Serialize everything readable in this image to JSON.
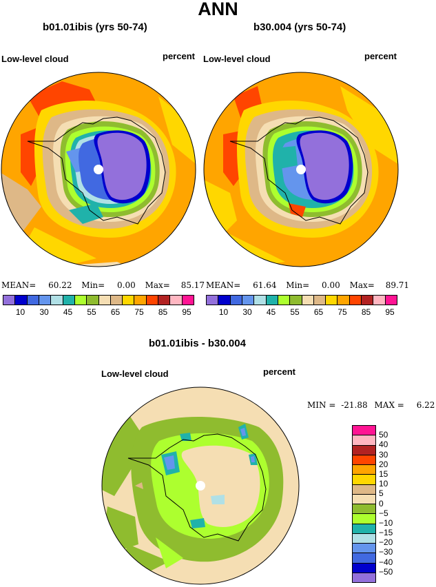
{
  "title": "ANN",
  "panels": [
    {
      "case": "b01.01ibis (yrs 50-74)",
      "variable": "Low-level cloud",
      "units": "percent",
      "stats": {
        "mean_label": "MEAN=",
        "mean": "60.22",
        "min_label": "Min=",
        "min": "0.00",
        "max_label": "Max=",
        "max": "85.17"
      }
    },
    {
      "case": "b30.004 (yrs 50-74)",
      "variable": "Low-level cloud",
      "units": "percent",
      "stats": {
        "mean_label": "MEAN=",
        "mean": "61.64",
        "min_label": "Min=",
        "min": "0.00",
        "max_label": "Max=",
        "max": "89.71"
      }
    }
  ],
  "colorbar": {
    "colors": [
      "#9370db",
      "#0000cd",
      "#4169e1",
      "#6495ed",
      "#b0e0e6",
      "#20b2aa",
      "#adff2f",
      "#8fbc2f",
      "#f5deb3",
      "#deb887",
      "#ffd700",
      "#ffa500",
      "#ff4500",
      "#b22222",
      "#ffb6c1",
      "#ff1493"
    ],
    "labels": [
      "10",
      "30",
      "45",
      "55",
      "65",
      "75",
      "85",
      "95"
    ]
  },
  "difference": {
    "title": "b01.01ibis - b30.004",
    "variable": "Low-level cloud",
    "units": "percent",
    "stats": {
      "min_label": "MIN =",
      "min": "-21.88",
      "max_label": "MAX =",
      "max": "6.22"
    },
    "colorbar": {
      "colors": [
        "#ff1493",
        "#ffb6c1",
        "#b22222",
        "#ff4500",
        "#ffa500",
        "#ffd700",
        "#deb887",
        "#f5deb3",
        "#8fbc2f",
        "#adff2f",
        "#20b2aa",
        "#b0e0e6",
        "#6495ed",
        "#4169e1",
        "#0000cd",
        "#9370db"
      ],
      "labels": [
        "50",
        "40",
        "30",
        "20",
        "15",
        "10",
        "5",
        "0",
        "−5",
        "−10",
        "−15",
        "−20",
        "−30",
        "−40",
        "−50"
      ]
    }
  }
}
